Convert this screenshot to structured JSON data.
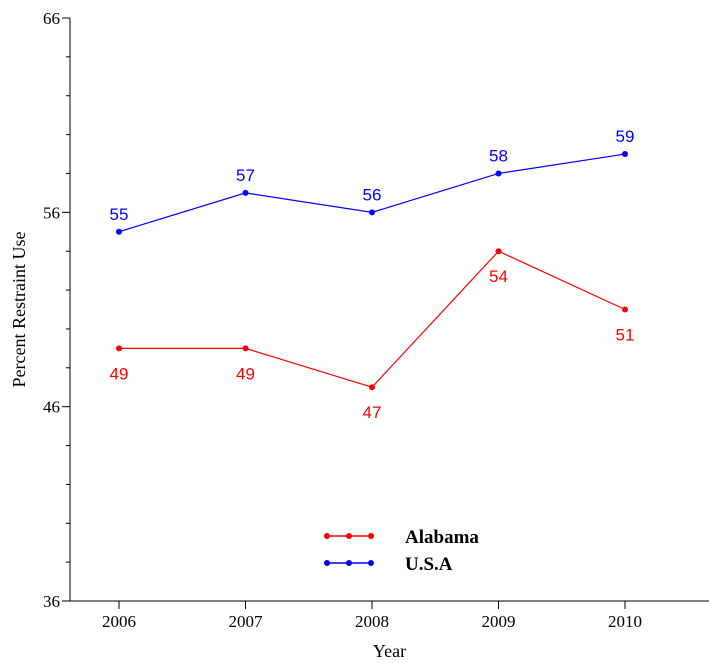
{
  "chart_data": {
    "type": "line",
    "title": "",
    "xlabel": "Year",
    "ylabel": "Percent Restraint Use",
    "categories": [
      "2006",
      "2007",
      "2008",
      "2009",
      "2010"
    ],
    "ylim": [
      36,
      66
    ],
    "yticks": [
      36,
      46,
      56,
      66
    ],
    "grid": false,
    "legend_position": "bottom-center",
    "series": [
      {
        "name": "Alabama",
        "color": "#ff0000",
        "values": [
          49,
          49,
          47,
          54,
          51
        ],
        "labels": [
          "49",
          "49",
          "47",
          "54",
          "51"
        ],
        "label_side": "below"
      },
      {
        "name": "U.S.A",
        "color": "#0000ff",
        "values": [
          55,
          57,
          56,
          58,
          59
        ],
        "labels": [
          "55",
          "57",
          "56",
          "58",
          "59"
        ],
        "label_side": "above"
      }
    ]
  }
}
